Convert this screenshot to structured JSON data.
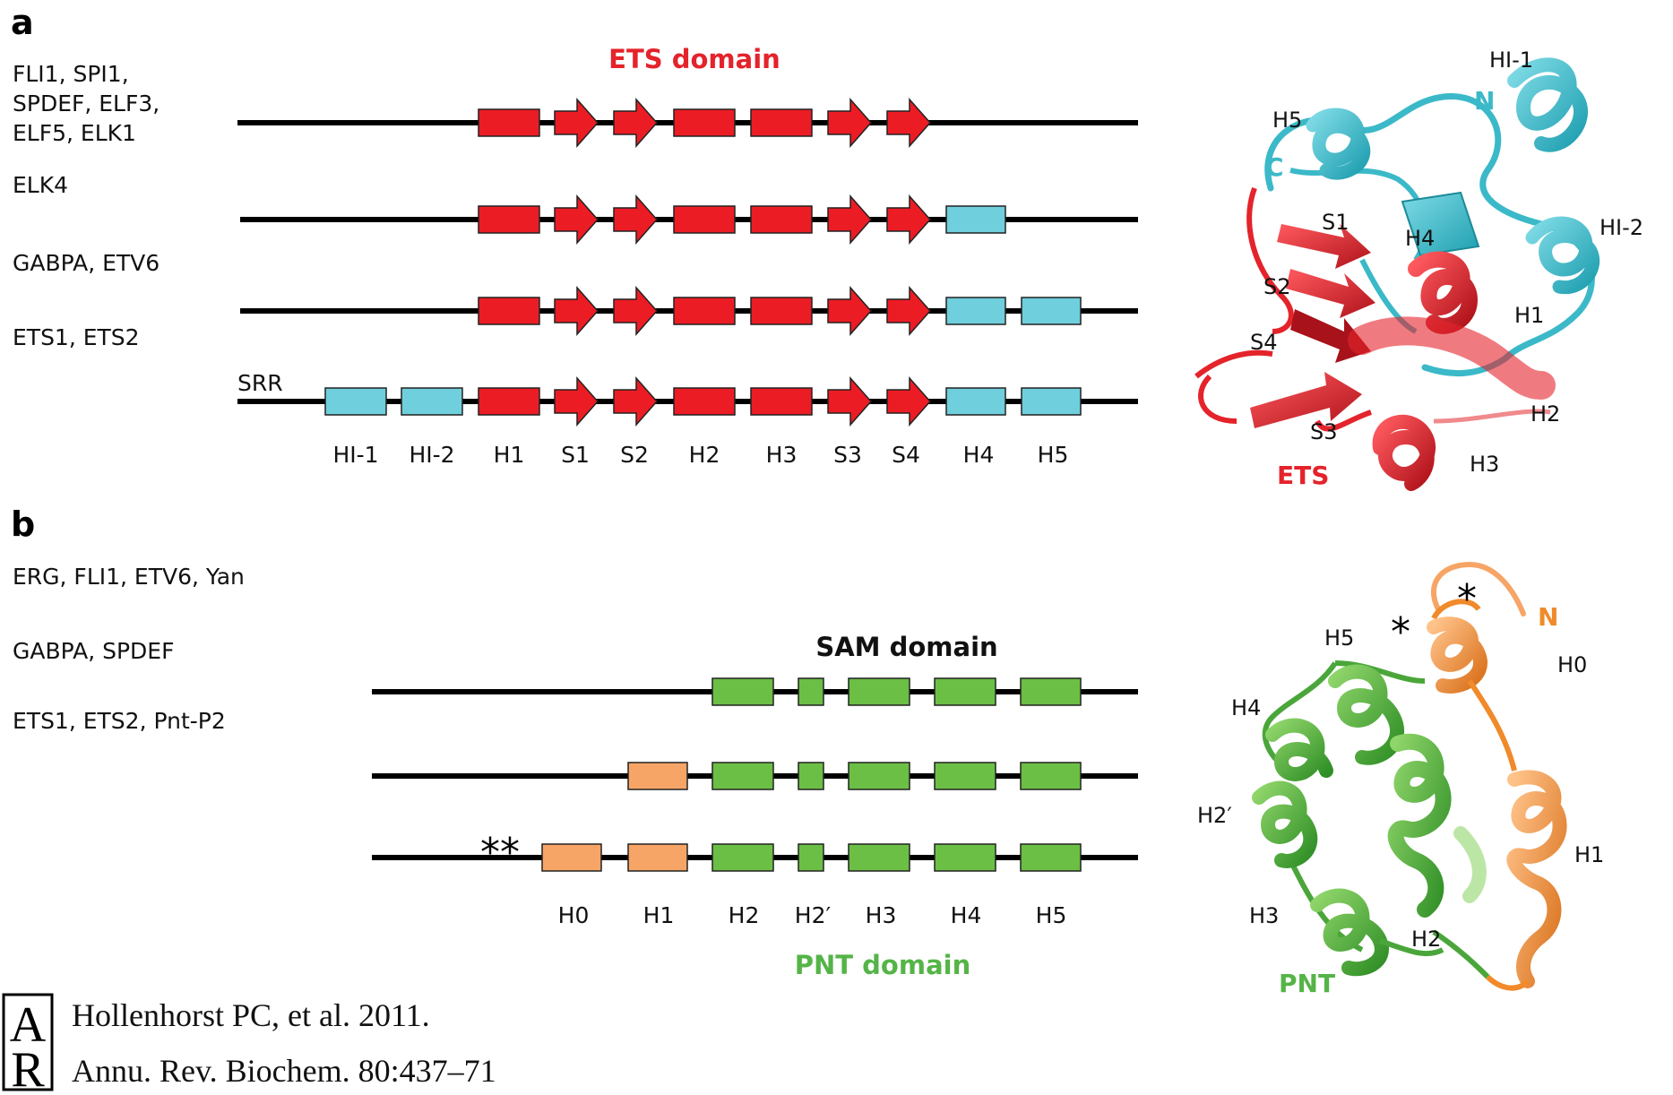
{
  "panel_a": {
    "letter": "a",
    "domain_title": "ETS domain",
    "rows": [
      {
        "names": [
          "FLI1, SPI1,",
          "SPDEF, ELF3,",
          "ELF5, ELK1"
        ]
      },
      {
        "names": [
          "ELK4"
        ]
      },
      {
        "names": [
          "GABPA, ETV6"
        ]
      },
      {
        "names": [
          "ETS1, ETS2"
        ]
      }
    ],
    "srr_label": "SRR",
    "element_labels": [
      "HI-1",
      "HI-2",
      "H1",
      "S1",
      "S2",
      "H2",
      "H3",
      "S3",
      "S4",
      "H4",
      "H5"
    ],
    "structure": {
      "labels": {
        "hi1": "HI-1",
        "n": "N",
        "h5": "H5",
        "c": "C",
        "s1": "S1",
        "h4": "H4",
        "hi2": "HI-2",
        "s2": "S2",
        "h1": "H1",
        "s4": "S4",
        "h2": "H2",
        "s3": "S3",
        "h3": "H3",
        "ets": "ETS"
      }
    }
  },
  "panel_b": {
    "letter": "b",
    "domain_title": "SAM domain",
    "subdomain_title": "PNT domain",
    "rows": [
      {
        "names": [
          "ERG, FLI1, ETV6, Yan"
        ]
      },
      {
        "names": [
          "GABPA, SPDEF"
        ]
      },
      {
        "names": [
          "ETS1, ETS2, Pnt-P2"
        ]
      }
    ],
    "asterisks": "**",
    "element_labels": [
      "H0",
      "H1",
      "H2",
      "H2′",
      "H3",
      "H4",
      "H5"
    ],
    "structure": {
      "labels": {
        "star": "*",
        "n": "N",
        "h5": "H5",
        "h0": "H0",
        "h4": "H4",
        "h2p": "H2′",
        "h1": "H1",
        "h3": "H3",
        "h2": "H2",
        "pnt": "PNT"
      }
    }
  },
  "citation": {
    "logo_letters": "AR",
    "line1": "Hollenhorst PC, et al. 2011.",
    "line2": "Annu. Rev. Biochem. 80:437–71"
  },
  "colors": {
    "ets_red": "#e4232b",
    "helix_blue": "#6fcfdc",
    "sam_green": "#6cbf45",
    "pnt_orange": "#f6a566",
    "teal_struct": "#3bb9c8"
  }
}
